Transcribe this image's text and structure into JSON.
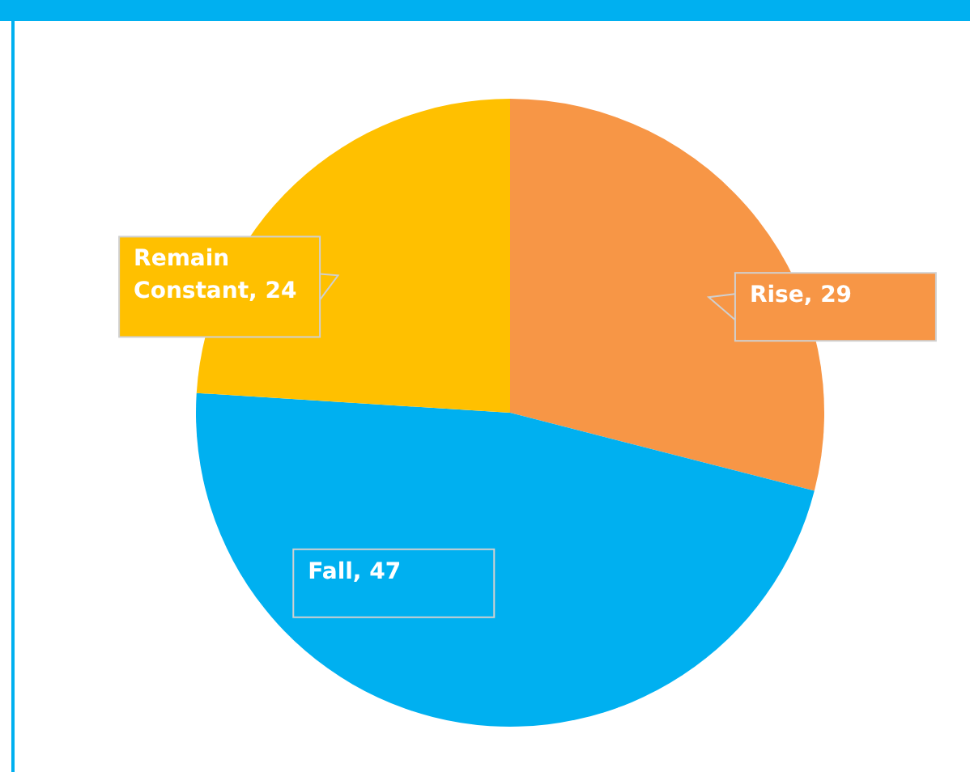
{
  "chart_data": {
    "type": "pie",
    "categories": [
      "Rise",
      "Fall",
      "Remain Constant"
    ],
    "values": [
      29,
      47,
      24
    ],
    "value_labels": [
      ", 29",
      ", 47",
      ", 24"
    ],
    "colors": [
      "#f79646",
      "#00b0f0",
      "#ffc000"
    ],
    "legend": false
  }
}
